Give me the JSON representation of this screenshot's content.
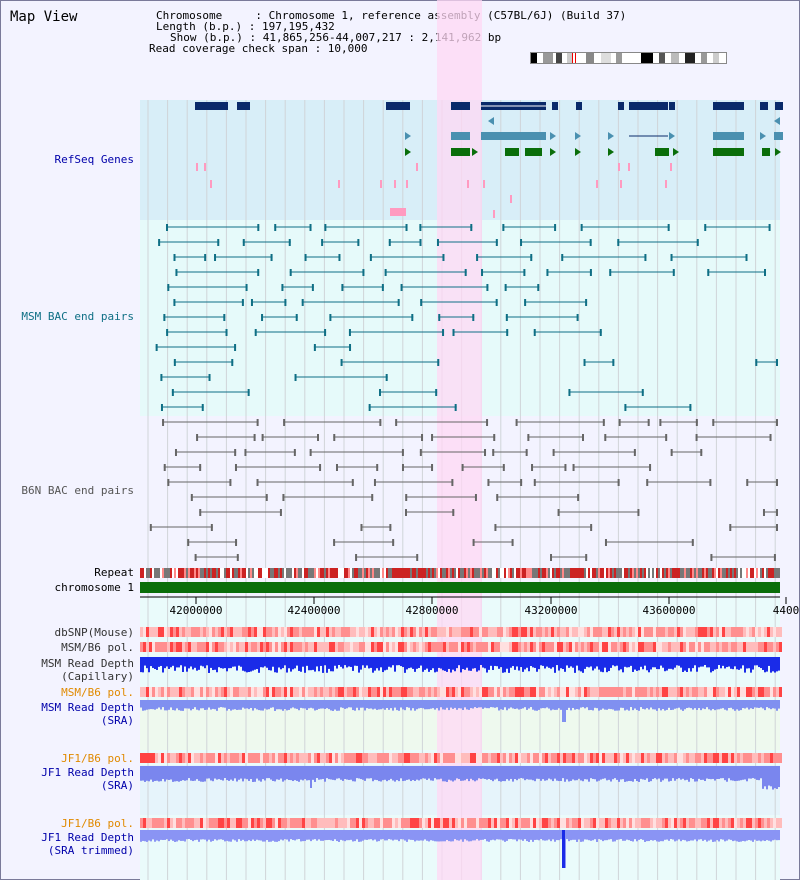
{
  "view_title": "Map View",
  "info": {
    "chromosome_line": "Chromosome     : Chromosome 1, reference assembly (C57BL/6J) (Build 37)",
    "length_line": "Length (b.p.) : 197,195,432",
    "show_line": "Show (b.p.) : 41,865,256-44,007,217 : 2,141,962 bp",
    "coverage_line": "Read coverage check span : 10,000"
  },
  "tracks": {
    "refseq": "RefSeq Genes",
    "msm_bac": "MSM BAC end pairs",
    "b6n_bac": "B6N BAC end pairs",
    "repeat": "Repeat",
    "chromosome": "chromosome 1",
    "dbsnp": "dbSNP(Mouse)",
    "msm_b6_pol_1": "MSM/B6 pol.",
    "msm_read_depth_cap_1": "MSM Read Depth",
    "msm_read_depth_cap_2": "(Capillary)",
    "msm_b6_pol_2": "MSM/B6 pol.",
    "msm_read_depth_sra_1": "MSM Read Depth",
    "msm_read_depth_sra_2": "(SRA)",
    "jf1_b6_pol_1": "JF1/B6 pol.",
    "jf1_read_depth_sra_1": "JF1 Read Depth",
    "jf1_read_depth_sra_2": "(SRA)",
    "jf1_b6_pol_2": "JF1/B6 pol.",
    "jf1_read_depth_trim_1": "JF1 Read Depth",
    "jf1_read_depth_trim_2": "(SRA trimmed)"
  },
  "axis": {
    "ticks": [
      "42000000",
      "42400000",
      "42800000",
      "43200000",
      "43600000",
      "4400"
    ]
  },
  "colors": {
    "refseq_bg": "#d8eef8",
    "msm_bg": "#e6fafa",
    "b6n_bg": "#f3f3ff",
    "highlight": "#ffd8f4",
    "navy": "#0a2a6a",
    "steel": "#4a90b0",
    "green": "#0a6e0a",
    "pink": "#ff9ac0",
    "teal": "#0f6f85",
    "gray": "#666666",
    "label_dark": "#000000",
    "label_navy": "#0000aa",
    "label_teal": "#0f6f85",
    "label_orange": "#e08a00"
  }
}
